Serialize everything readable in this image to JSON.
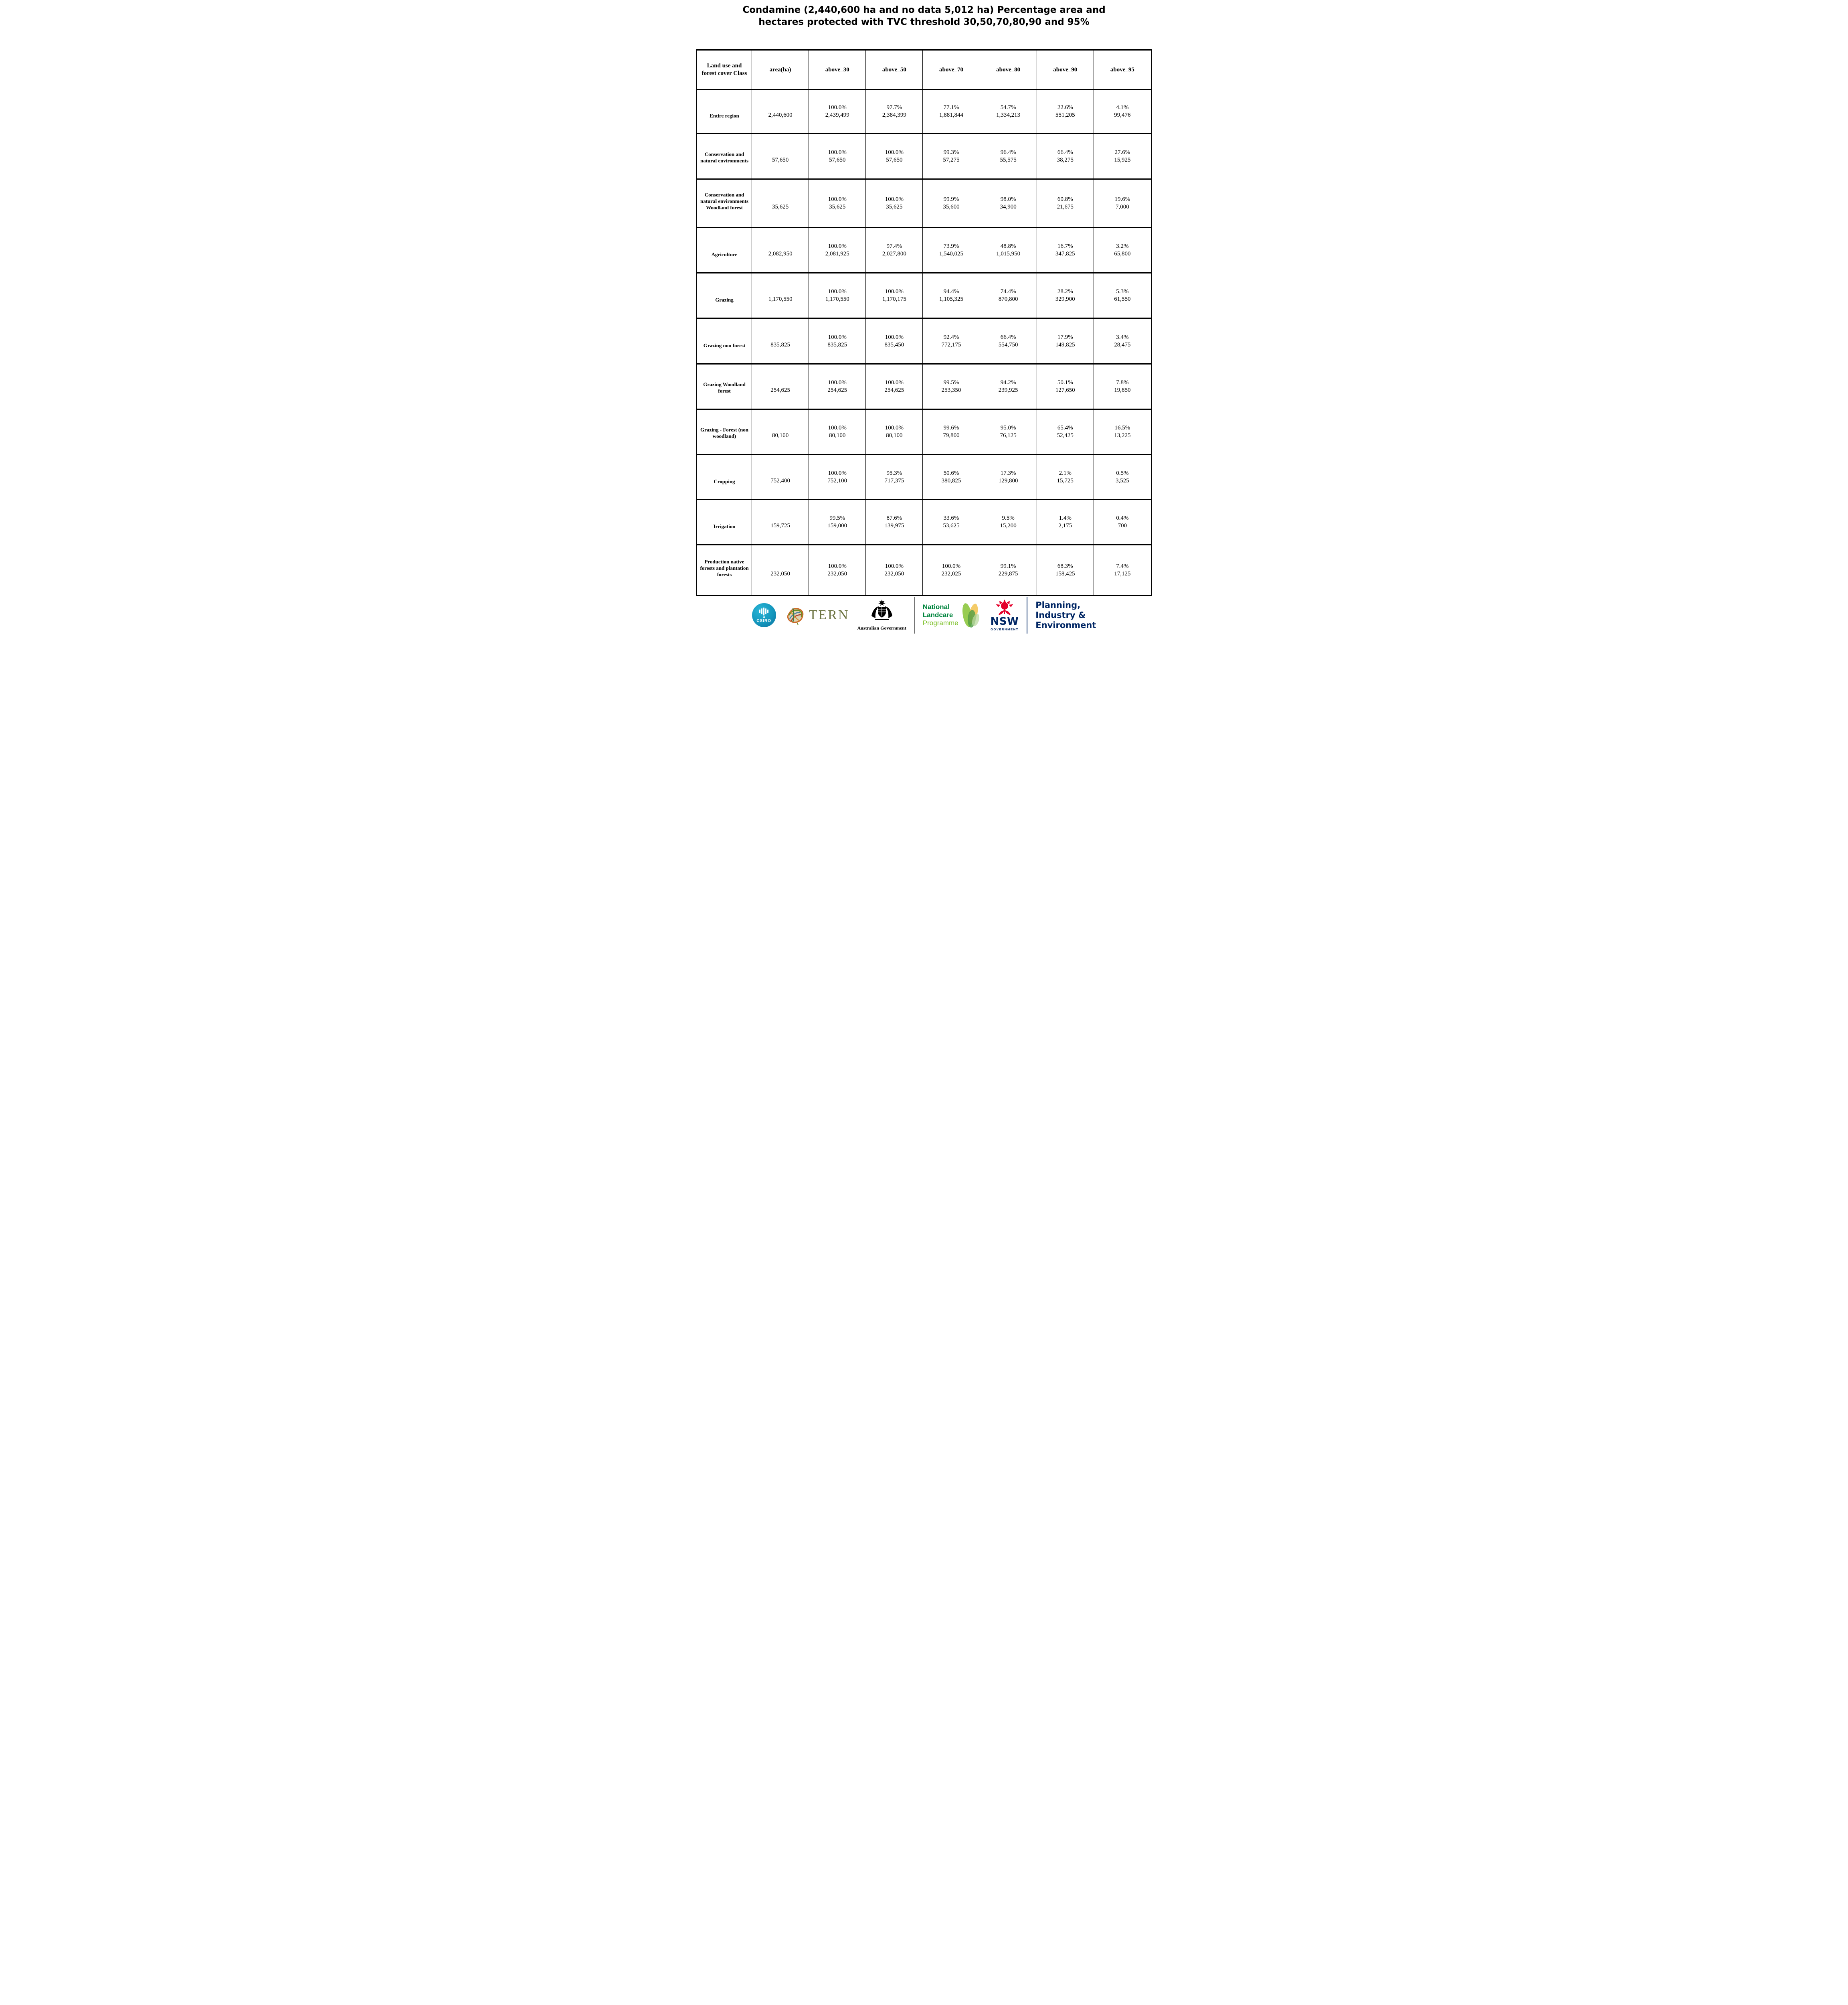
{
  "title": "Condamine (2,440,600 ha and no data 5,012 ha) Percentage area and\nhectares protected with TVC threshold 30,50,70,80,90 and 95%",
  "table": {
    "columns": [
      "Land use and forest cover Class",
      "area(ha)",
      "above_30",
      "above_50",
      "above_70",
      "above_80",
      "above_90",
      "above_95"
    ],
    "rows": [
      {
        "class": "Entire region",
        "area": "2,440,600",
        "cells": [
          [
            "100.0%",
            "2,439,499"
          ],
          [
            "97.7%",
            "2,384,399"
          ],
          [
            "77.1%",
            "1,881,844"
          ],
          [
            "54.7%",
            "1,334,213"
          ],
          [
            "22.6%",
            "551,205"
          ],
          [
            "4.1%",
            "99,476"
          ]
        ]
      },
      {
        "class": "Conservation and natural environments",
        "area": "57,650",
        "cells": [
          [
            "100.0%",
            "57,650"
          ],
          [
            "100.0%",
            "57,650"
          ],
          [
            "99.3%",
            "57,275"
          ],
          [
            "96.4%",
            "55,575"
          ],
          [
            "66.4%",
            "38,275"
          ],
          [
            "27.6%",
            "15,925"
          ]
        ]
      },
      {
        "class": "Conservation and natural environments Woodland forest",
        "area": "35,625",
        "cells": [
          [
            "100.0%",
            "35,625"
          ],
          [
            "100.0%",
            "35,625"
          ],
          [
            "99.9%",
            "35,600"
          ],
          [
            "98.0%",
            "34,900"
          ],
          [
            "60.8%",
            "21,675"
          ],
          [
            "19.6%",
            "7,000"
          ]
        ]
      },
      {
        "class": "Agriculture",
        "area": "2,082,950",
        "cells": [
          [
            "100.0%",
            "2,081,925"
          ],
          [
            "97.4%",
            "2,027,800"
          ],
          [
            "73.9%",
            "1,540,025"
          ],
          [
            "48.8%",
            "1,015,950"
          ],
          [
            "16.7%",
            "347,825"
          ],
          [
            "3.2%",
            "65,800"
          ]
        ]
      },
      {
        "class": "Grazing",
        "area": "1,170,550",
        "cells": [
          [
            "100.0%",
            "1,170,550"
          ],
          [
            "100.0%",
            "1,170,175"
          ],
          [
            "94.4%",
            "1,105,325"
          ],
          [
            "74.4%",
            "870,800"
          ],
          [
            "28.2%",
            "329,900"
          ],
          [
            "5.3%",
            "61,550"
          ]
        ]
      },
      {
        "class": "Grazing non forest",
        "area": "835,825",
        "cells": [
          [
            "100.0%",
            "835,825"
          ],
          [
            "100.0%",
            "835,450"
          ],
          [
            "92.4%",
            "772,175"
          ],
          [
            "66.4%",
            "554,750"
          ],
          [
            "17.9%",
            "149,825"
          ],
          [
            "3.4%",
            "28,475"
          ]
        ]
      },
      {
        "class": "Grazing Woodland forest",
        "area": "254,625",
        "cells": [
          [
            "100.0%",
            "254,625"
          ],
          [
            "100.0%",
            "254,625"
          ],
          [
            "99.5%",
            "253,350"
          ],
          [
            "94.2%",
            "239,925"
          ],
          [
            "50.1%",
            "127,650"
          ],
          [
            "7.8%",
            "19,850"
          ]
        ]
      },
      {
        "class": "Grazing - Forest (non woodland)",
        "area": "80,100",
        "cells": [
          [
            "100.0%",
            "80,100"
          ],
          [
            "100.0%",
            "80,100"
          ],
          [
            "99.6%",
            "79,800"
          ],
          [
            "95.0%",
            "76,125"
          ],
          [
            "65.4%",
            "52,425"
          ],
          [
            "16.5%",
            "13,225"
          ]
        ]
      },
      {
        "class": "Cropping",
        "area": "752,400",
        "cells": [
          [
            "100.0%",
            "752,100"
          ],
          [
            "95.3%",
            "717,375"
          ],
          [
            "50.6%",
            "380,825"
          ],
          [
            "17.3%",
            "129,800"
          ],
          [
            "2.1%",
            "15,725"
          ],
          [
            "0.5%",
            "3,525"
          ]
        ]
      },
      {
        "class": "Irrigation",
        "area": "159,725",
        "cells": [
          [
            "99.5%",
            "159,000"
          ],
          [
            "87.6%",
            "139,975"
          ],
          [
            "33.6%",
            "53,625"
          ],
          [
            "9.5%",
            "15,200"
          ],
          [
            "1.4%",
            "2,175"
          ],
          [
            "0.4%",
            "700"
          ]
        ]
      },
      {
        "class": "Production native forests and plantation forests",
        "area": "232,050",
        "cells": [
          [
            "100.0%",
            "232,050"
          ],
          [
            "100.0%",
            "232,050"
          ],
          [
            "100.0%",
            "232,025"
          ],
          [
            "99.1%",
            "229,875"
          ],
          [
            "68.3%",
            "158,425"
          ],
          [
            "7.4%",
            "17,125"
          ]
        ]
      }
    ]
  },
  "footer": {
    "csiro_label": "CSIRO",
    "tern_label": "TERN",
    "aus_gov_label": "Australian Government",
    "landcare_lines": [
      "National",
      "Landcare",
      "Programme"
    ],
    "nsw_label": "NSW",
    "nsw_sub_label": "GOVERNMENT",
    "dpie_lines": [
      "Planning,",
      "Industry &",
      "Environment"
    ]
  },
  "colors": {
    "csiro_teal": "#1497bd",
    "tern_olive": "#6d7442",
    "landcare_green": "#00843d",
    "landcare_light_green": "#78be20",
    "nsw_red": "#e4002b",
    "nsw_navy": "#002664"
  }
}
